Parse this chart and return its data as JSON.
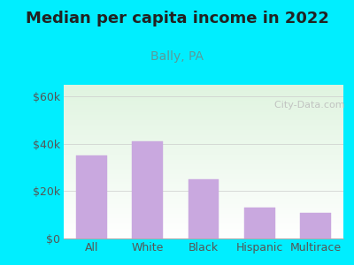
{
  "title": "Median per capita income in 2022",
  "subtitle": "Bally, PA",
  "categories": [
    "All",
    "White",
    "Black",
    "Hispanic",
    "Multirace"
  ],
  "values": [
    35000,
    41000,
    25000,
    13000,
    11000
  ],
  "bar_color": "#C9A8DF",
  "bar_edge_color": "#C9A8DF",
  "background_outer": "#00EEFF",
  "background_inner_top": "#f0faf0",
  "background_inner_bottom": "#ffffff",
  "title_color": "#222222",
  "subtitle_color": "#5a9a9a",
  "tick_color": "#555555",
  "ylim": [
    0,
    65000
  ],
  "yticks": [
    0,
    20000,
    40000,
    60000
  ],
  "ytick_labels": [
    "$0",
    "$20k",
    "$40k",
    "$60k"
  ],
  "watermark_text": "  City-Data.com",
  "watermark_color": "#bbbbbb",
  "title_fontsize": 13,
  "subtitle_fontsize": 10,
  "tick_fontsize": 9
}
